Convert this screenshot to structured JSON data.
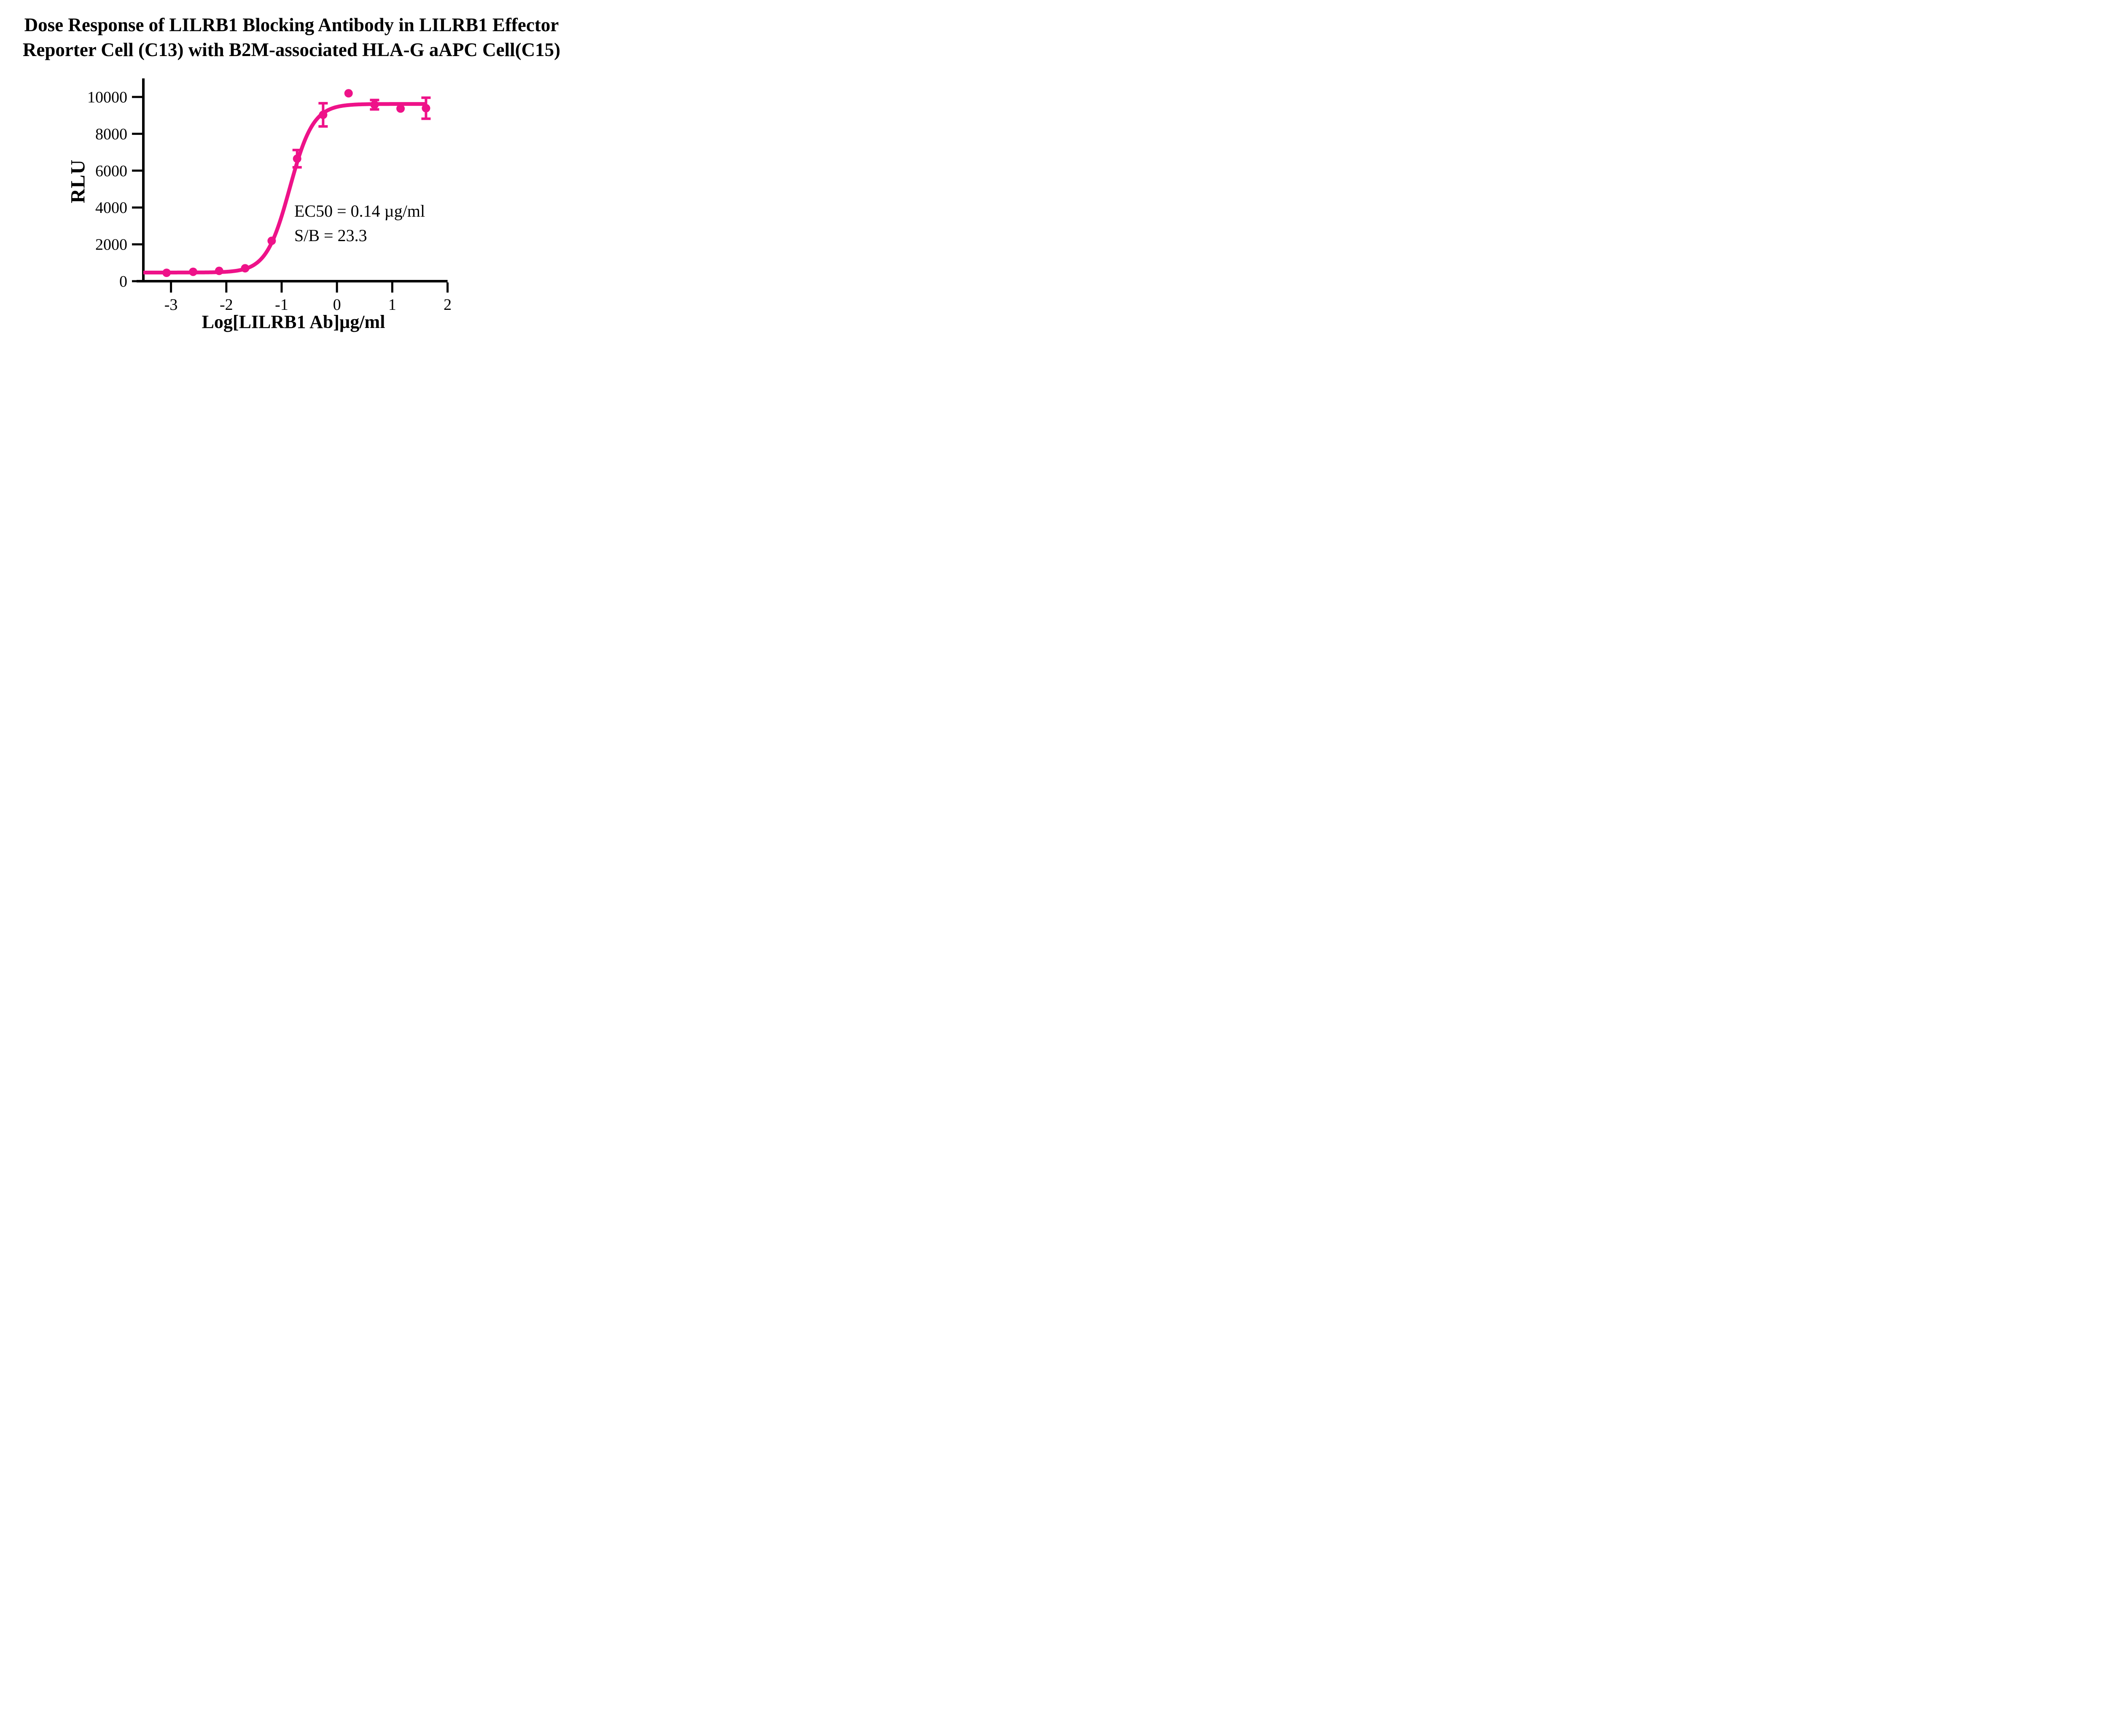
{
  "title": {
    "line1": "Dose Response of LILRB1 Blocking Antibody in LILRB1 Effector",
    "line2": "Reporter Cell (C13) with B2M-associated HLA-G aAPC Cell(C15)"
  },
  "annotation": {
    "ec50_text": "EC50 = 0.14 µg/ml",
    "sb_text": "S/B = 23.3"
  },
  "colors": {
    "series": "#EE1289",
    "axis": "#000000",
    "background": "#FFFFFF"
  },
  "chart_data": {
    "type": "scatter",
    "subtype": "dose-response sigmoid fit with error bars",
    "title": "Dose Response of LILRB1 Blocking Antibody in LILRB1 Effector Reporter Cell (C13) with B2M-associated HLA-G aAPC Cell(C15)",
    "xlabel": "Log[LILRB1 Ab]µg/ml",
    "ylabel": "RLU",
    "xlim": [
      -3.5,
      2.0
    ],
    "ylim": [
      0,
      11000
    ],
    "x_ticks": [
      -3,
      -2,
      -1,
      0,
      1,
      2
    ],
    "y_ticks": [
      0,
      2000,
      4000,
      6000,
      8000,
      10000
    ],
    "grid": false,
    "legend": false,
    "series": [
      {
        "name": "LILRB1 blocking antibody",
        "x_log_ug_ml": [
          -3.08,
          -2.6,
          -2.13,
          -1.66,
          -1.18,
          -0.72,
          -0.25,
          0.21,
          0.68,
          1.15,
          1.61
        ],
        "y_rlu": [
          455,
          510,
          560,
          700,
          2190,
          6650,
          9030,
          10200,
          9580,
          9370,
          9390
        ],
        "y_err_rlu": [
          null,
          null,
          null,
          null,
          null,
          470,
          630,
          null,
          255,
          null,
          570
        ]
      }
    ],
    "fit_curve": {
      "model": "4-parameter logistic",
      "bottom_rlu": 470,
      "top_rlu": 9620,
      "log_ec50": -0.854,
      "hill_slope": 2.05,
      "draw_range_log": [
        -3.5,
        1.61
      ],
      "ec50_ug_ml": 0.14,
      "signal_to_background": 23.3
    }
  }
}
